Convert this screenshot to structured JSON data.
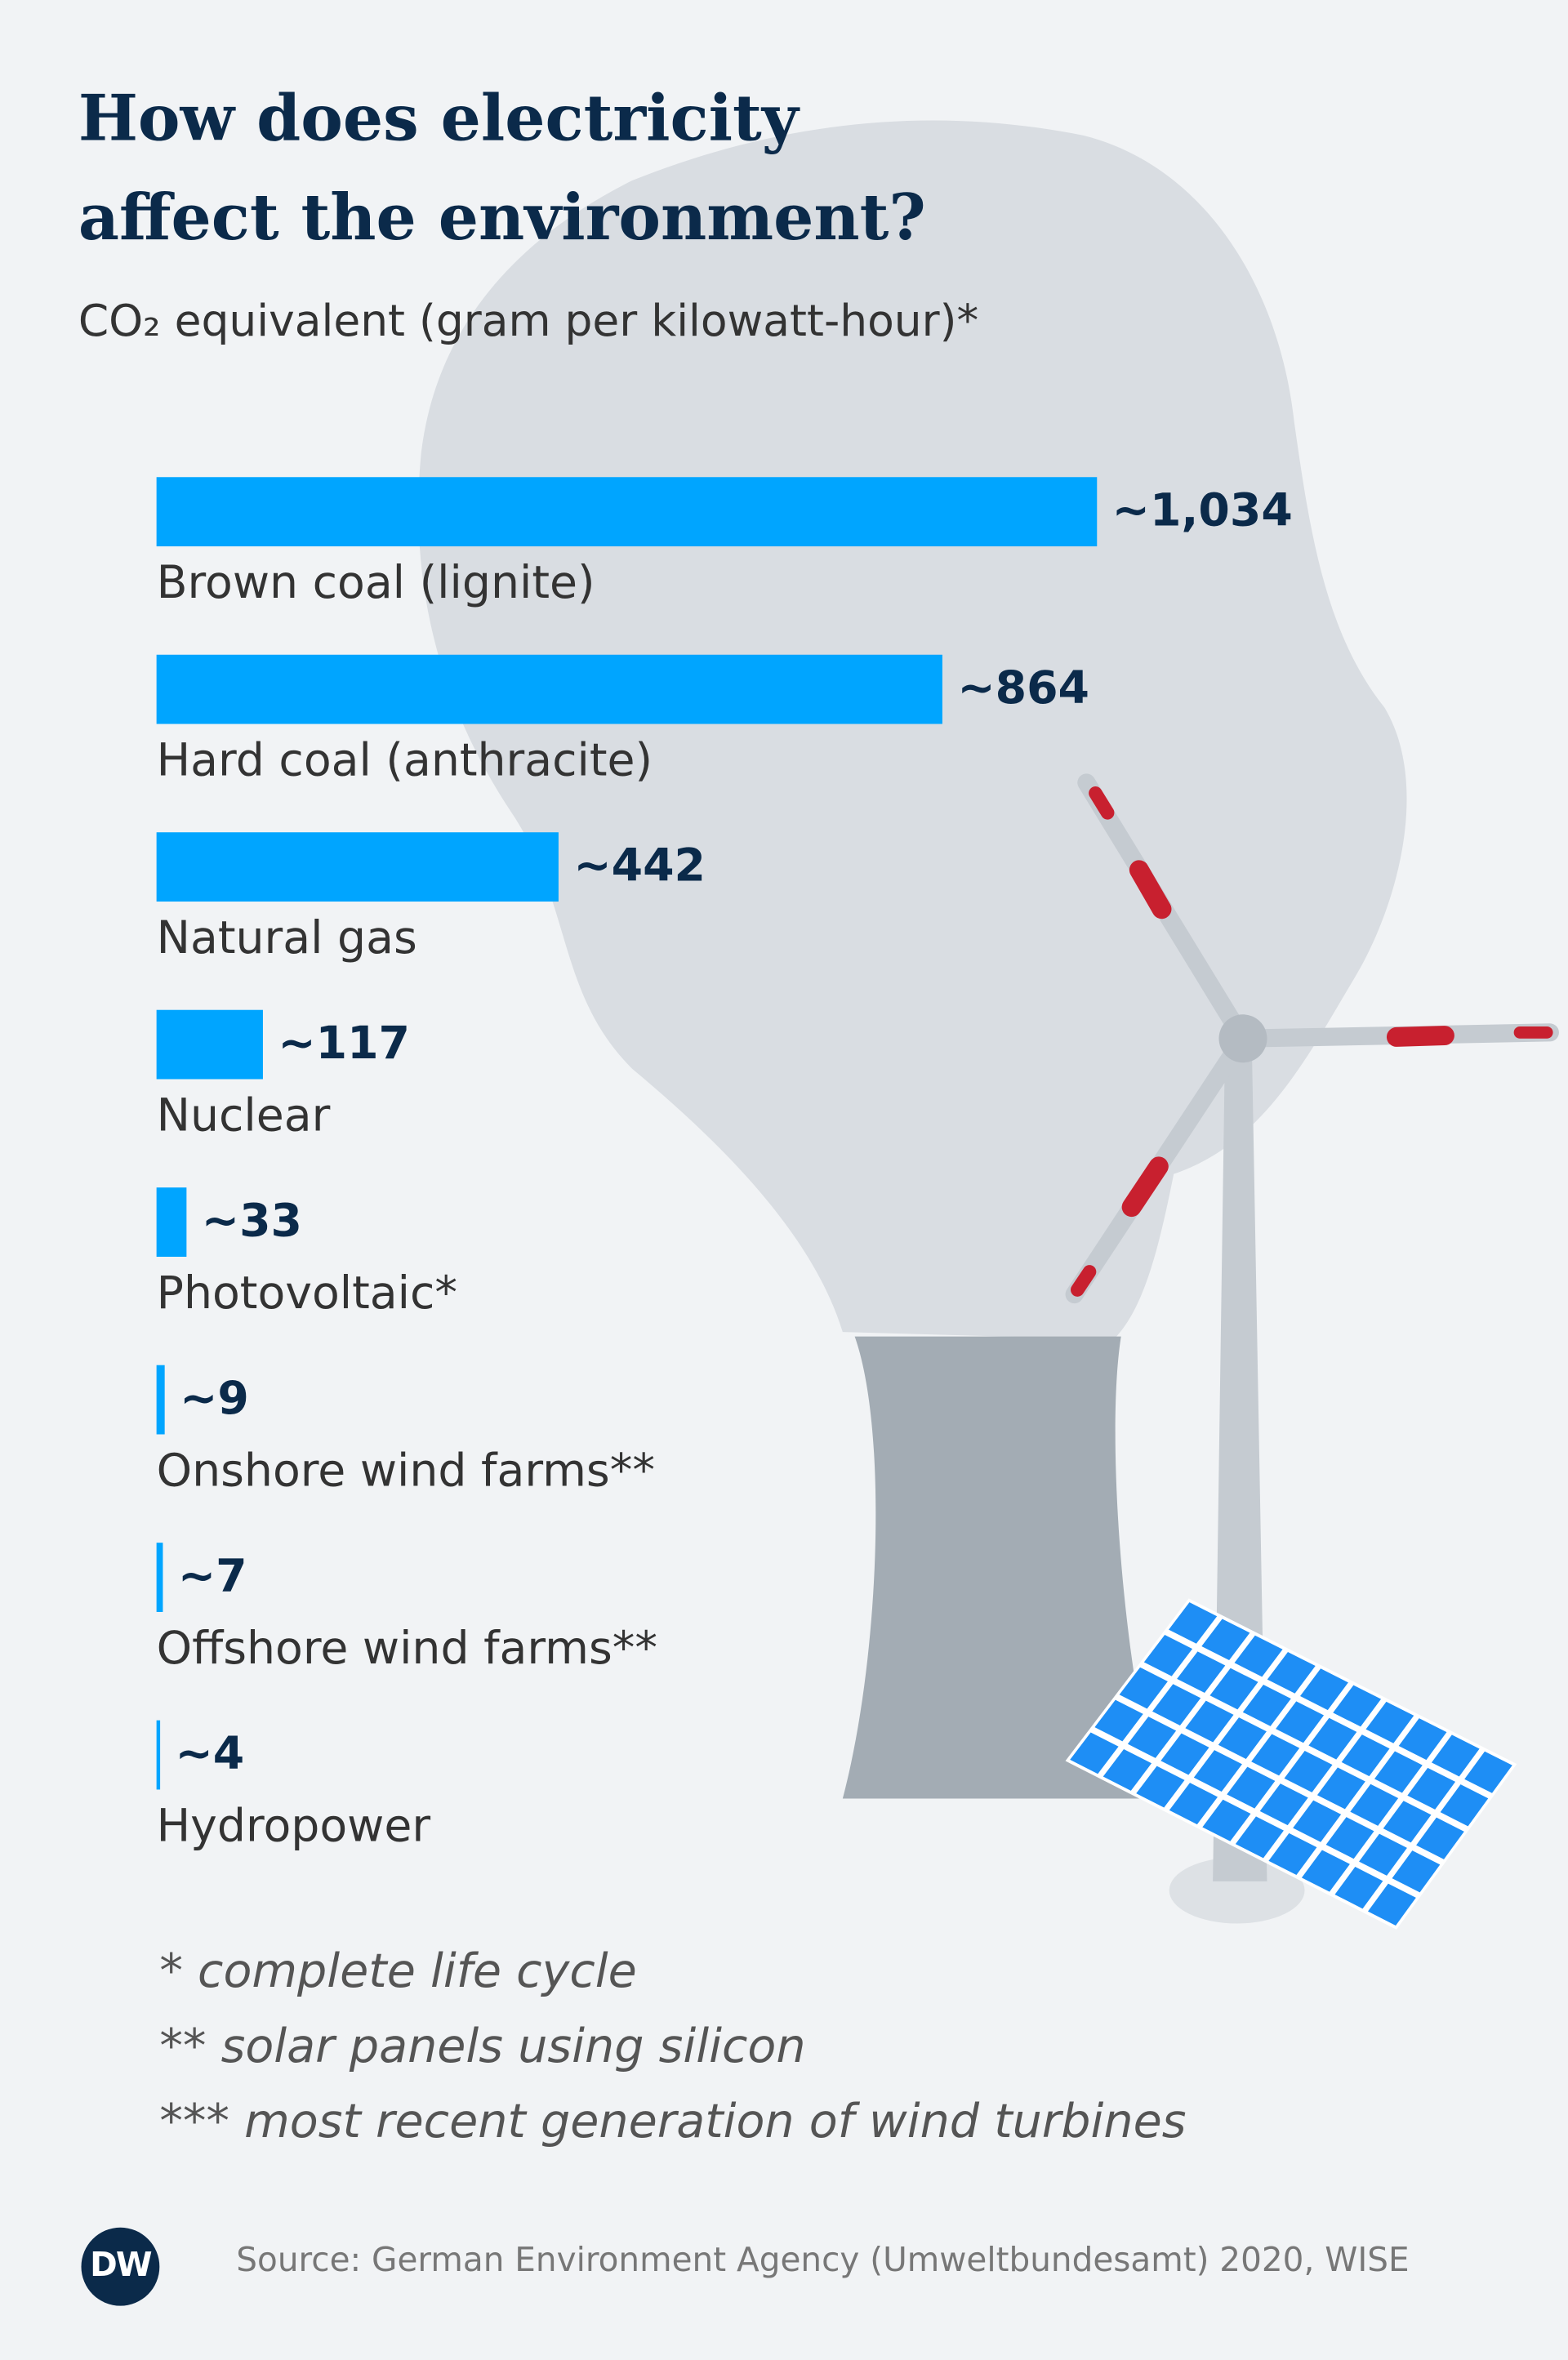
{
  "chart_data": {
    "type": "bar",
    "orientation": "horizontal",
    "title": "How does electricity affect the environment?",
    "subtitle": "CO₂ equivalent (gram per kilowatt-hour)*",
    "categories": [
      "Brown coal (lignite)",
      "Hard coal (anthracite)",
      "Natural gas",
      "Nuclear",
      "Photovoltaic*",
      "Onshore wind farms**",
      "Offshore wind farms**",
      "Hydropower"
    ],
    "values": [
      1034,
      864,
      442,
      117,
      33,
      9,
      7,
      4
    ],
    "value_labels": [
      "~1,034",
      "~864",
      "~442",
      "~117",
      "~33",
      "~9",
      "~7",
      "~4"
    ],
    "color": "#00a5ff",
    "footnotes": [
      "* complete life cycle",
      "** solar panels using silicon",
      "*** most recent generation of wind turbines"
    ],
    "source": "Source: German Environment Agency (Umweltbundesamt) 2020, WISE",
    "logo": "DW"
  }
}
